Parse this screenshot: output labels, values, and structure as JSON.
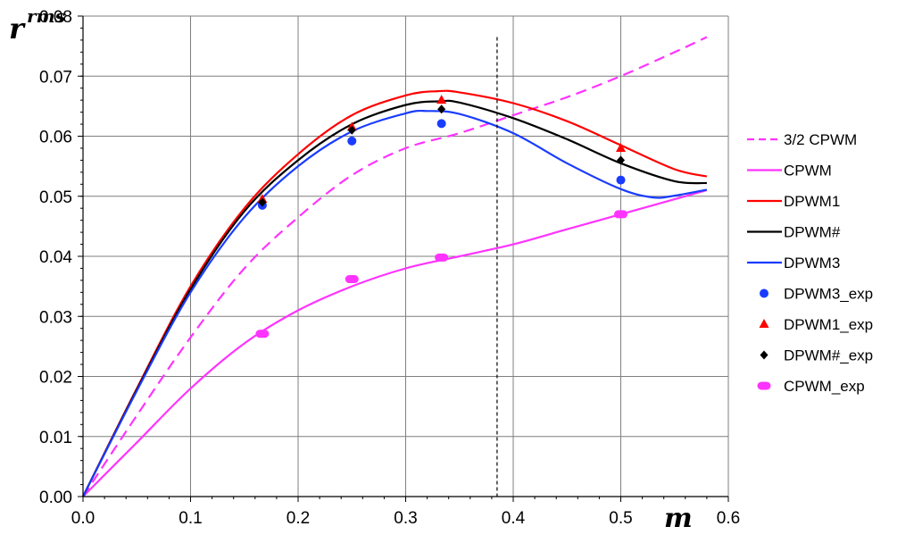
{
  "chart_data": {
    "type": "line",
    "title": "",
    "xlabel": "m",
    "ylabel_main": "r",
    "ylabel_sup": "rms",
    "xlim": [
      0.0,
      0.6
    ],
    "ylim": [
      0.0,
      0.08
    ],
    "x_ticks": [
      "0.0",
      "0.1",
      "0.2",
      "0.3",
      "0.4",
      "0.5",
      "0.6"
    ],
    "y_ticks": [
      "0.00",
      "0.01",
      "0.02",
      "0.03",
      "0.04",
      "0.05",
      "0.06",
      "0.07",
      "0.08"
    ],
    "grid": true,
    "legend_position": "right",
    "vertical_marker_x": 0.385,
    "series": [
      {
        "name": "3/2 CPWM",
        "kind": "line",
        "style": "dashed",
        "color": "#ff33ff",
        "x": [
          0,
          0.05,
          0.1,
          0.15,
          0.2,
          0.25,
          0.3,
          0.35,
          0.4,
          0.45,
          0.5,
          0.55,
          0.58
        ],
        "y": [
          0,
          0.0135,
          0.0265,
          0.038,
          0.0465,
          0.0535,
          0.058,
          0.0605,
          0.0635,
          0.0665,
          0.07,
          0.074,
          0.0765
        ]
      },
      {
        "name": "CPWM",
        "kind": "line",
        "style": "solid",
        "color": "#ff33ff",
        "x": [
          0,
          0.05,
          0.1,
          0.15,
          0.2,
          0.25,
          0.3,
          0.35,
          0.4,
          0.45,
          0.5,
          0.55,
          0.58
        ],
        "y": [
          0,
          0.009,
          0.018,
          0.0255,
          0.031,
          0.035,
          0.038,
          0.04,
          0.042,
          0.0445,
          0.047,
          0.0495,
          0.051
        ]
      },
      {
        "name": "DPWM1",
        "kind": "line",
        "style": "solid",
        "color": "#ff0000",
        "x": [
          0,
          0.05,
          0.1,
          0.15,
          0.2,
          0.25,
          0.3,
          0.33,
          0.35,
          0.4,
          0.45,
          0.5,
          0.55,
          0.58
        ],
        "y": [
          0,
          0.018,
          0.035,
          0.048,
          0.057,
          0.0635,
          0.0668,
          0.0675,
          0.0673,
          0.0655,
          0.0625,
          0.0585,
          0.0545,
          0.0533
        ]
      },
      {
        "name": "DPWM#",
        "kind": "line",
        "style": "solid",
        "color": "#000000",
        "x": [
          0,
          0.05,
          0.1,
          0.15,
          0.2,
          0.25,
          0.3,
          0.33,
          0.35,
          0.4,
          0.45,
          0.5,
          0.55,
          0.58
        ],
        "y": [
          0,
          0.0178,
          0.0345,
          0.0475,
          0.056,
          0.062,
          0.0652,
          0.0658,
          0.0656,
          0.063,
          0.0595,
          0.0555,
          0.0525,
          0.0522
        ]
      },
      {
        "name": "DPWM3",
        "kind": "line",
        "style": "solid",
        "color": "#1a3cff",
        "x": [
          0,
          0.05,
          0.1,
          0.15,
          0.2,
          0.25,
          0.3,
          0.32,
          0.35,
          0.4,
          0.45,
          0.5,
          0.53,
          0.55,
          0.58
        ],
        "y": [
          0,
          0.0176,
          0.034,
          0.0465,
          0.055,
          0.0608,
          0.0638,
          0.0642,
          0.0637,
          0.0605,
          0.0555,
          0.0512,
          0.0498,
          0.0501,
          0.0511
        ]
      },
      {
        "name": "DPWM3_exp",
        "kind": "scatter",
        "marker": "circle",
        "color": "#1a3cff",
        "x": [
          0.1667,
          0.25,
          0.3333,
          0.5
        ],
        "y": [
          0.0485,
          0.0592,
          0.0621,
          0.0527
        ]
      },
      {
        "name": "DPWM1_exp",
        "kind": "scatter",
        "marker": "triangle",
        "color": "#ff0000",
        "x": [
          0.1667,
          0.25,
          0.3333,
          0.5
        ],
        "y": [
          0.0495,
          0.0615,
          0.066,
          0.058
        ]
      },
      {
        "name": "DPWM#_exp",
        "kind": "scatter",
        "marker": "diamond",
        "color": "#000000",
        "x": [
          0.1667,
          0.25,
          0.3333,
          0.5
        ],
        "y": [
          0.049,
          0.061,
          0.0645,
          0.056
        ]
      },
      {
        "name": "CPWM_exp",
        "kind": "scatter",
        "marker": "pill",
        "color": "#ff33ff",
        "x": [
          0.1667,
          0.25,
          0.3333,
          0.5
        ],
        "y": [
          0.0271,
          0.0362,
          0.0398,
          0.047
        ]
      }
    ]
  }
}
